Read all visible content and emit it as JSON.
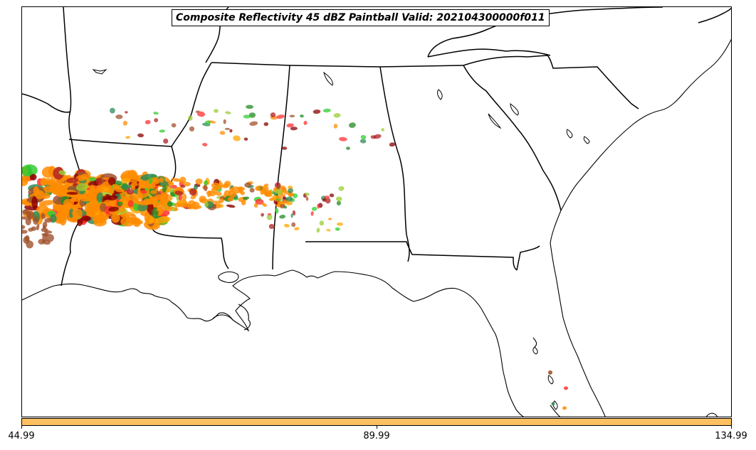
{
  "map": {
    "title": "Composite Reflectivity 45 dBZ Paintball Valid: 202104300000f011",
    "region": "Southeastern United States",
    "background_color": "#ffffff",
    "boundary_color": "#000000",
    "reflectivity_threshold": "45 dBZ",
    "paintball_colors": [
      "#ff8c00",
      "#ff3030",
      "#b22222",
      "#2e8b57",
      "#32cd32",
      "#9acd32",
      "#a0522d",
      "#8b0000",
      "#228b22",
      "#ffa500"
    ]
  },
  "colorbar": {
    "color": "#ffc060",
    "tick_labels": [
      "44.99",
      "89.99",
      "134.99"
    ]
  }
}
